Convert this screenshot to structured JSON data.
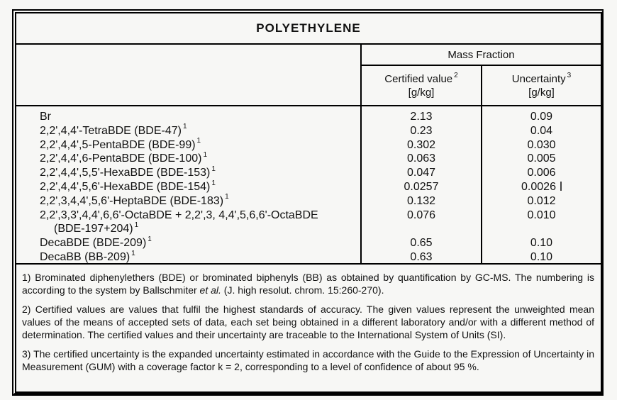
{
  "title": "POLYETHYLENE",
  "colors": {
    "background": "#f7f7f5",
    "border": "#000000",
    "text": "#111111"
  },
  "header": {
    "mass_fraction": "Mass Fraction",
    "certified": {
      "label": "Certified value",
      "sup": "2",
      "unit": "[g/kg]"
    },
    "uncertainty": {
      "label": "Uncertainty",
      "sup": "3",
      "unit": "[g/kg]"
    }
  },
  "table": {
    "compounds": [
      {
        "text": "Br",
        "sup": ""
      },
      {
        "text": "2,2',4,4'-TetraBDE (BDE-47)",
        "sup": "1"
      },
      {
        "text": "2,2',4,4',5-PentaBDE (BDE-99)",
        "sup": "1"
      },
      {
        "text": "2,2',4,4',6-PentaBDE (BDE-100)",
        "sup": "1"
      },
      {
        "text": "2,2',4,4',5,5'-HexaBDE (BDE-153)",
        "sup": "1"
      },
      {
        "text": "2,2',4,4',5,6'-HexaBDE (BDE-154)",
        "sup": "1"
      },
      {
        "text": "2,2',3,4,4',5,6'-HeptaBDE (BDE-183)",
        "sup": "1"
      },
      {
        "text": "2,2',3,3',4,4',6,6'-OctaBDE + 2,2',3, 4,4',5,6,6'-OctaBDE",
        "sup": ""
      },
      {
        "text": "(BDE-197+204)",
        "sup": "1"
      },
      {
        "text": "DecaBDE (BDE-209)",
        "sup": "1"
      },
      {
        "text": "DecaBB (BB-209)",
        "sup": "1"
      }
    ],
    "certified_values": [
      "2.13",
      "0.23",
      "0.302",
      "0.063",
      "0.047",
      "0.0257",
      "0.132",
      "0.076",
      "",
      "0.65",
      "0.63"
    ],
    "uncertainty_values": [
      "0.09",
      "0.04",
      "0.030",
      "0.005",
      "0.006",
      "0.0026",
      "0.012",
      "0.010",
      "",
      "0.10",
      "0.10"
    ]
  },
  "footnotes": [
    {
      "part1": "1) Brominated diphenylethers (BDE) or brominated biphenyls (BB) as obtained by quantification by GC-MS. The numbering is according to the system by Ballschmiter ",
      "italic": "et al.",
      "part2": " (J. high resolut. chrom. 15:260-270)."
    },
    {
      "part1": "2) Certified values are values that fulfil the highest standards of accuracy. The given values represent the unweighted mean values of the means of accepted sets of data, each set being obtained in a different laboratory and/or with a different method of determination. The certified values and their uncertainty are traceable to the International System of Units (SI).",
      "italic": "",
      "part2": ""
    },
    {
      "part1": "3) The certified uncertainty is the expanded uncertainty estimated in accordance with the Guide to the Expression of Uncertainty in Measurement (GUM) with a coverage factor k = 2, corresponding to a level of confidence of about 95 %.",
      "italic": "",
      "part2": ""
    }
  ]
}
